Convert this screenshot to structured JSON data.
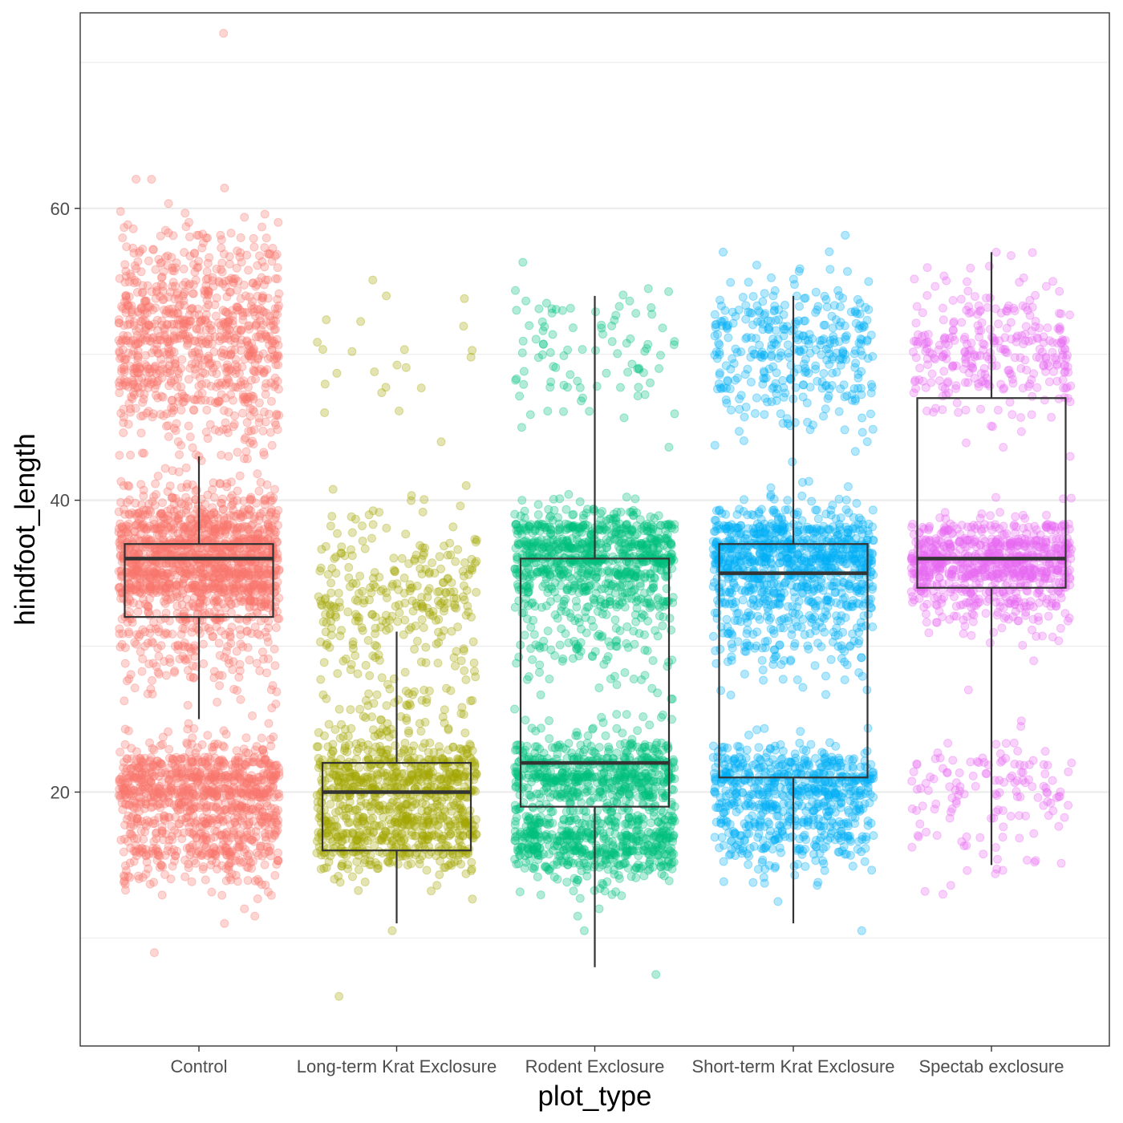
{
  "chart_data": {
    "type": "boxplot+jitter",
    "xlabel": "plot_type",
    "ylabel": "hindfoot_length",
    "ylim": [
      2.6,
      73.4
    ],
    "yticks": [
      20,
      40,
      60
    ],
    "grid": true,
    "legend": "none",
    "categories": [
      "Control",
      "Long-term Krat Exclosure",
      "Rodent Exclosure",
      "Short-term Krat Exclosure",
      "Spectab exclosure"
    ],
    "colors": [
      "#F8766D",
      "#A3A500",
      "#00BF7D",
      "#00B0F6",
      "#E76BF3"
    ],
    "boxes": [
      {
        "category": "Control",
        "whisker_low": 25,
        "q1": 32,
        "median": 36,
        "q3": 37,
        "whisker_high": 43
      },
      {
        "category": "Long-term Krat Exclosure",
        "whisker_low": 11,
        "q1": 16,
        "median": 20,
        "q3": 22,
        "whisker_high": 31
      },
      {
        "category": "Rodent Exclosure",
        "whisker_low": 8,
        "q1": 19,
        "median": 22,
        "q3": 36,
        "whisker_high": 54
      },
      {
        "category": "Short-term Krat Exclosure",
        "whisker_low": 11,
        "q1": 21,
        "median": 35,
        "q3": 37,
        "whisker_high": 54
      },
      {
        "category": "Spectab exclosure",
        "whisker_low": 15,
        "q1": 34,
        "median": 36,
        "q3": 47,
        "whisker_high": 57
      }
    ],
    "point_clusters": [
      {
        "category": "Control",
        "clusters": [
          [
            51,
            3.5,
            900
          ],
          [
            36,
            2.2,
            1400
          ],
          [
            30,
            2.0,
            150
          ],
          [
            20.5,
            1.4,
            700
          ],
          [
            16.5,
            1.4,
            350
          ]
        ]
      },
      {
        "category": "Long-term Krat Exclosure",
        "clusters": [
          [
            50,
            2.5,
            20
          ],
          [
            34,
            2.5,
            250
          ],
          [
            28,
            2.0,
            60
          ],
          [
            24,
            1.5,
            60
          ],
          [
            21,
            1.2,
            450
          ],
          [
            17,
            1.3,
            450
          ]
        ]
      },
      {
        "category": "Rodent Exclosure",
        "clusters": [
          [
            50,
            2.5,
            90
          ],
          [
            37,
            1.2,
            500
          ],
          [
            34.5,
            1.8,
            350
          ],
          [
            30,
            1.5,
            80
          ],
          [
            24,
            1.5,
            30
          ],
          [
            21,
            1.2,
            550
          ],
          [
            16.5,
            1.2,
            550
          ]
        ]
      },
      {
        "category": "Short-term Krat Exclosure",
        "clusters": [
          [
            50,
            2.5,
            350
          ],
          [
            37,
            1.3,
            450
          ],
          [
            34.5,
            1.8,
            450
          ],
          [
            30,
            1.5,
            100
          ],
          [
            21,
            1.2,
            400
          ],
          [
            17.5,
            1.5,
            300
          ]
        ]
      },
      {
        "category": "Spectab exclosure",
        "clusters": [
          [
            50,
            2.5,
            300
          ],
          [
            36,
            1.3,
            700
          ],
          [
            33,
            1.2,
            120
          ],
          [
            21,
            1.2,
            90
          ],
          [
            17,
            1.5,
            50
          ]
        ]
      }
    ],
    "extra_points": [
      {
        "category": "Control",
        "values": [
          72,
          58.5,
          56.5,
          55.5,
          11,
          9,
          12,
          11.5,
          41,
          43,
          39.5
        ]
      },
      {
        "category": "Long-term Krat Exclosure",
        "values": [
          54,
          44,
          46,
          41,
          6,
          10.5,
          39
        ]
      },
      {
        "category": "Rodent Exclosure",
        "values": [
          54.5,
          53.5,
          45,
          7.5,
          10.5,
          12,
          11.5
        ]
      },
      {
        "category": "Short-term Krat Exclosure",
        "values": [
          54,
          53.5,
          10.5,
          12.5,
          40
        ]
      },
      {
        "category": "Spectab exclosure",
        "values": [
          57,
          55,
          13,
          43,
          29,
          27,
          24.5
        ]
      }
    ]
  }
}
